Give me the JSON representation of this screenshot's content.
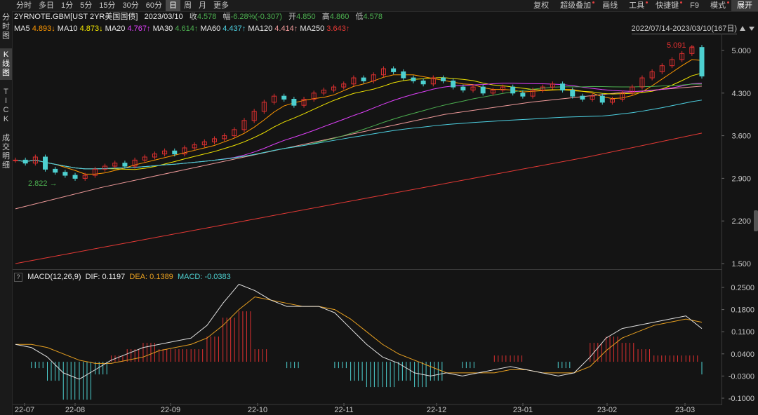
{
  "toolbar": {
    "left": [
      "分时",
      "多日",
      "1分",
      "5分",
      "15分",
      "30分",
      "60分",
      "日",
      "周",
      "月",
      "更多"
    ],
    "active_index": 7,
    "right": [
      {
        "label": "复权",
        "dot": false
      },
      {
        "label": "超级叠加",
        "dot": true
      },
      {
        "label": "画线",
        "dot": false
      },
      {
        "label": "工具",
        "dot": true
      },
      {
        "label": "快捷键",
        "dot": true
      },
      {
        "label": "F9",
        "dot": false
      },
      {
        "label": "模式",
        "dot": true
      },
      {
        "label": "展开",
        "dot": false
      }
    ]
  },
  "sidebar": [
    {
      "label": "分时图",
      "active": false
    },
    {
      "label": "K线图",
      "active": true
    },
    {
      "label": "TICK",
      "active": false
    },
    {
      "label": "成交明细",
      "active": false
    }
  ],
  "info": {
    "symbol": "2YRNOTE.GBM[UST 2YR美国国债]",
    "date": "2023/03/10",
    "close_label": "收",
    "close": "4.578",
    "change_label": "幅",
    "change": "-6.28%(-0.307)",
    "open_label": "开",
    "open": "4.850",
    "high_label": "高",
    "high": "4.860",
    "low_label": "低",
    "low": "4.578"
  },
  "ma": [
    {
      "name": "MA5",
      "value": "4.893↓",
      "color": "#e8e8e8",
      "vcolor": "#ff9800"
    },
    {
      "name": "MA10",
      "value": "4.873↓",
      "color": "#e8e8e8",
      "vcolor": "#f2e600"
    },
    {
      "name": "MA20",
      "value": "4.767↑",
      "color": "#e8e8e8",
      "vcolor": "#e040fb"
    },
    {
      "name": "MA30",
      "value": "4.614↑",
      "color": "#e8e8e8",
      "vcolor": "#4caf50"
    },
    {
      "name": "MA60",
      "value": "4.437↑",
      "color": "#e8e8e8",
      "vcolor": "#4dd0e1"
    },
    {
      "name": "MA120",
      "value": "4.414↑",
      "color": "#e8e8e8",
      "vcolor": "#ef9a9a"
    },
    {
      "name": "MA250",
      "value": "3.643↑",
      "color": "#e8e8e8",
      "vcolor": "#e53935"
    }
  ],
  "range_text": "2022/07/14-2023/03/10(167日)",
  "macd": {
    "name": "MACD(12,26,9)",
    "dif_label": "DIF:",
    "dif": "0.1197",
    "dea_label": "DEA:",
    "dea": "0.1389",
    "macd_label": "MACD:",
    "macd": "-0.0383"
  },
  "colors": {
    "up": "#e03030",
    "down": "#4dd0d0",
    "dif": "#e0e0e0",
    "dea": "#e8a020"
  },
  "chart_data": [
    {
      "type": "candlestick",
      "y_ticks": [
        "5.000",
        "4.300",
        "3.600",
        "2.900",
        "2.200",
        "1.500"
      ],
      "ylim": [
        1.5,
        5.0
      ],
      "x_ticks": [
        "22-07",
        "22-08",
        "22-09",
        "22-10",
        "22-11",
        "22-12",
        "23-01",
        "23-02",
        "23-03"
      ],
      "annotations": [
        {
          "text": "5.091",
          "value": 5.091
        },
        {
          "text": "2.822",
          "value": 2.822
        }
      ],
      "close_series": [
        3.2,
        3.15,
        3.25,
        3.05,
        3.0,
        2.95,
        2.9,
        2.95,
        3.05,
        3.1,
        3.15,
        3.1,
        3.2,
        3.25,
        3.3,
        3.35,
        3.3,
        3.4,
        3.45,
        3.5,
        3.55,
        3.6,
        3.7,
        3.85,
        4.0,
        4.15,
        4.25,
        4.2,
        4.1,
        4.2,
        4.3,
        4.35,
        4.4,
        4.45,
        4.55,
        4.5,
        4.6,
        4.7,
        4.65,
        4.55,
        4.5,
        4.45,
        4.55,
        4.5,
        4.4,
        4.35,
        4.4,
        4.3,
        4.35,
        4.4,
        4.3,
        4.25,
        4.35,
        4.4,
        4.45,
        4.35,
        4.25,
        4.2,
        4.25,
        4.15,
        4.2,
        4.3,
        4.4,
        4.55,
        4.65,
        4.75,
        4.85,
        4.95,
        5.05,
        4.58
      ],
      "ma250": [
        1.5,
        1.85,
        2.2,
        2.55,
        2.9,
        3.25,
        3.643
      ],
      "ma120": [
        2.4,
        2.75,
        3.05,
        3.35,
        3.65,
        3.95,
        4.15,
        4.3,
        4.414
      ]
    },
    {
      "type": "macd",
      "y_ticks": [
        "0.2500",
        "0.1800",
        "0.1100",
        "0.0400",
        "-0.0300",
        "-0.1000"
      ],
      "ylim": [
        -0.1,
        0.25
      ],
      "dif": [
        0.07,
        0.06,
        0.03,
        -0.02,
        -0.04,
        -0.01,
        0.02,
        0.04,
        0.06,
        0.07,
        0.08,
        0.09,
        0.13,
        0.2,
        0.26,
        0.24,
        0.21,
        0.19,
        0.19,
        0.19,
        0.17,
        0.12,
        0.07,
        0.03,
        0.01,
        -0.02,
        -0.03,
        -0.02,
        -0.03,
        -0.02,
        -0.01,
        0.0,
        -0.01,
        -0.02,
        -0.03,
        -0.02,
        0.03,
        0.09,
        0.12,
        0.13,
        0.14,
        0.15,
        0.16,
        0.12
      ],
      "dea": [
        0.07,
        0.07,
        0.06,
        0.04,
        0.02,
        0.01,
        0.01,
        0.02,
        0.03,
        0.05,
        0.06,
        0.07,
        0.09,
        0.13,
        0.18,
        0.22,
        0.21,
        0.2,
        0.19,
        0.19,
        0.18,
        0.15,
        0.11,
        0.07,
        0.04,
        0.02,
        0.0,
        -0.02,
        -0.02,
        -0.02,
        -0.02,
        -0.01,
        -0.01,
        -0.02,
        -0.02,
        -0.02,
        0.0,
        0.05,
        0.09,
        0.11,
        0.13,
        0.14,
        0.15,
        0.14
      ]
    }
  ]
}
